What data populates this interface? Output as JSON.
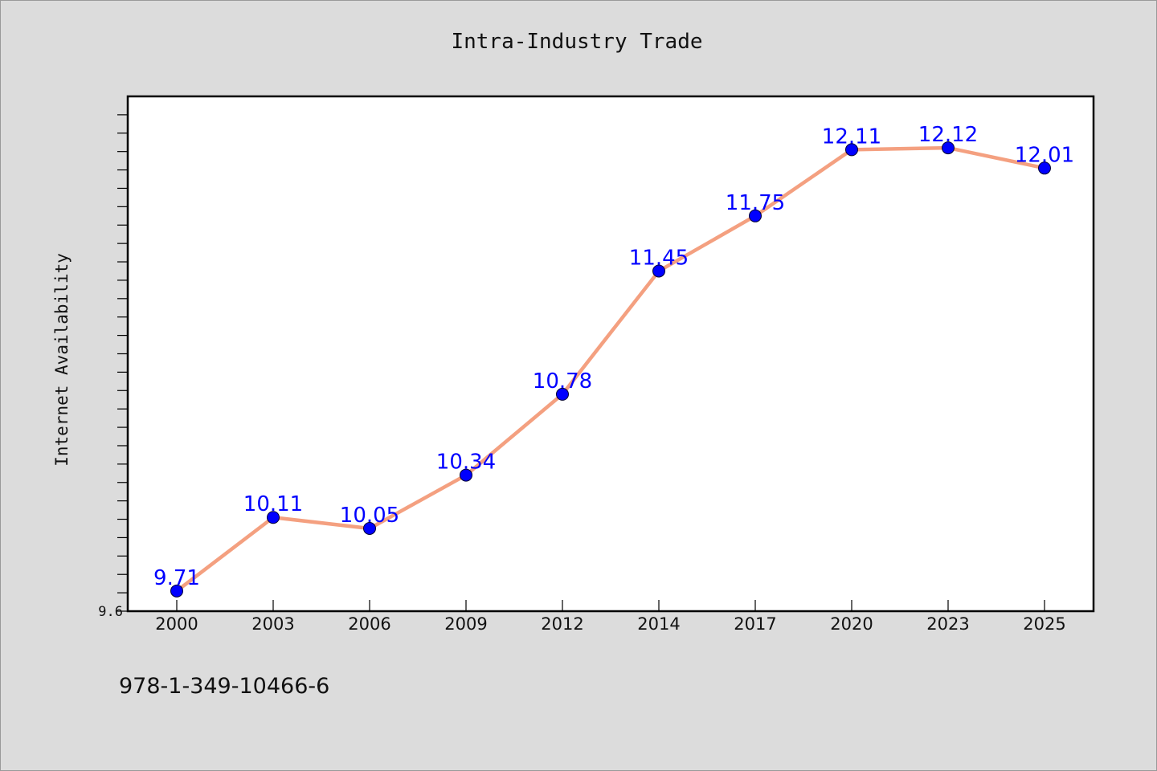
{
  "chart_data": {
    "type": "line",
    "title": "Intra-Industry Trade",
    "xlabel": "",
    "ylabel": "Internet Availability",
    "categories": [
      "2000",
      "2003",
      "2006",
      "2009",
      "2012",
      "2014",
      "2017",
      "2020",
      "2023",
      "2025"
    ],
    "series": [
      {
        "values": [
          9.71,
          10.11,
          10.05,
          10.34,
          10.78,
          11.45,
          11.75,
          12.11,
          12.12,
          12.01
        ],
        "data_labels": [
          "9.71",
          "10.11",
          "10.05",
          "10.34",
          "10.78",
          "11.45",
          "11.75",
          "12.11",
          "12.12",
          "12.01"
        ],
        "line_color": "#f4a080",
        "marker_color": "#0000ff"
      }
    ],
    "ylim": [
      9.6,
      12.4
    ],
    "y_tick_labels": [
      "9.6"
    ],
    "grid": false,
    "legend": "none"
  },
  "footer": {
    "isbn": "978-1-349-10466-6"
  },
  "colors": {
    "background": "#dcdcdc",
    "plot_background": "#ffffff",
    "line": "#f4a080",
    "marker": "#0000ff",
    "data_label": "#0000ff"
  }
}
